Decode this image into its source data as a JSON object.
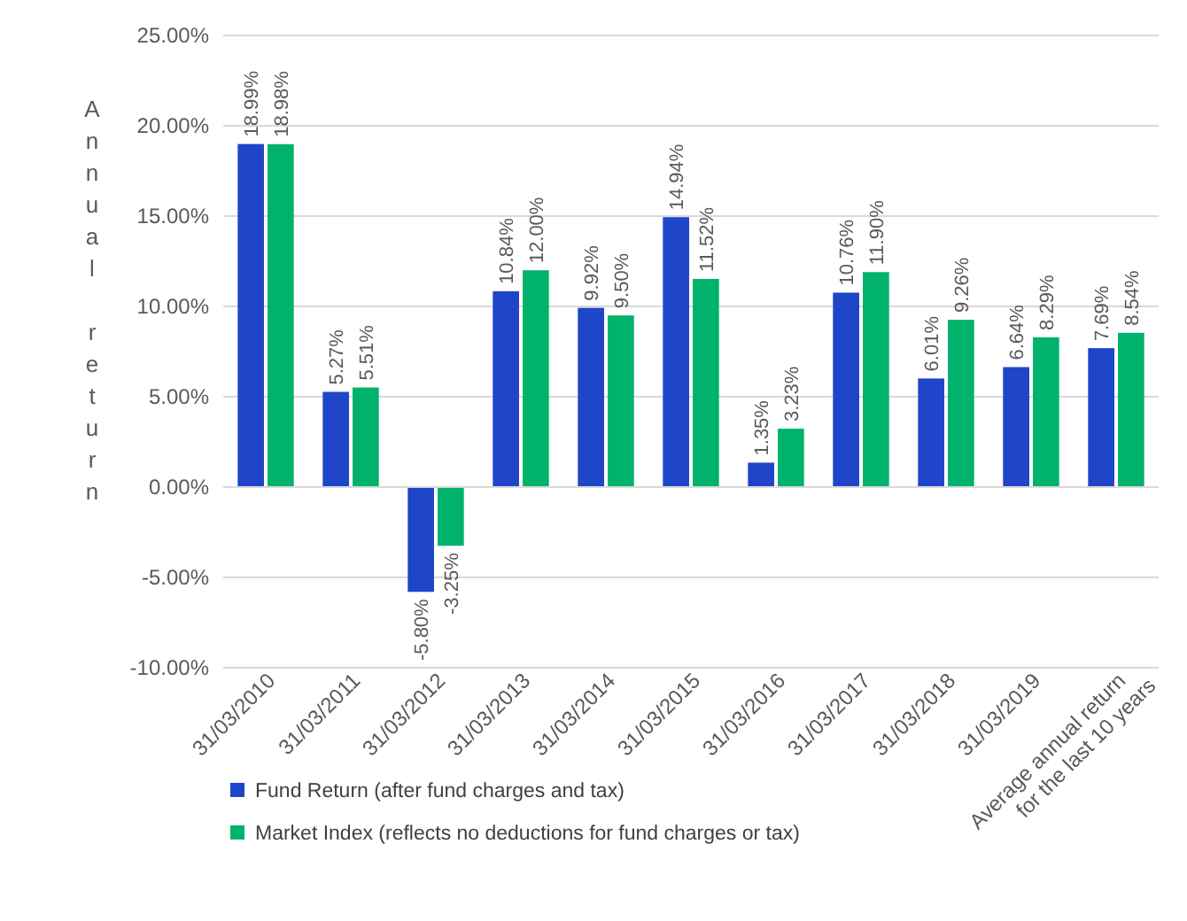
{
  "chart_data": {
    "type": "bar",
    "ylabel": "Annual return",
    "categories": [
      "31/03/2010",
      "31/03/2011",
      "31/03/2012",
      "31/03/2013",
      "31/03/2014",
      "31/03/2015",
      "31/03/2016",
      "31/03/2017",
      "31/03/2018",
      "31/03/2019",
      "Average annual  return\nfor the last 10 years"
    ],
    "series": [
      {
        "name": "Fund Return (after fund charges and tax)",
        "color": "#1f45c8",
        "values": [
          18.99,
          5.27,
          -5.8,
          10.84,
          9.92,
          14.94,
          1.35,
          10.76,
          6.01,
          6.64,
          7.69
        ],
        "value_labels": [
          "18.99%",
          "5.27%",
          "-5.80%",
          "10.84%",
          "9.92%",
          "14.94%",
          "1.35%",
          "10.76%",
          "6.01%",
          "6.64%",
          "7.69%"
        ]
      },
      {
        "name": "Market Index (reflects no deductions for fund charges or tax)",
        "color": "#00b26b",
        "values": [
          18.98,
          5.51,
          -3.25,
          12.0,
          9.5,
          11.52,
          3.23,
          11.9,
          9.26,
          8.29,
          8.54
        ],
        "value_labels": [
          "18.98%",
          "5.51%",
          "-3.25%",
          "12.00%",
          "9.50%",
          "11.52%",
          "3.23%",
          "11.90%",
          "9.26%",
          "8.29%",
          "8.54%"
        ]
      }
    ],
    "ylim": [
      -10,
      25
    ],
    "yticks": [
      {
        "value": -10,
        "label": "-10.00%"
      },
      {
        "value": -5,
        "label": "-5.00%"
      },
      {
        "value": 0,
        "label": "0.00%"
      },
      {
        "value": 5,
        "label": "5.00%"
      },
      {
        "value": 10,
        "label": "10.00%"
      },
      {
        "value": 15,
        "label": "15.00%"
      },
      {
        "value": 20,
        "label": "20.00%"
      },
      {
        "value": 25,
        "label": "25.00%"
      }
    ],
    "grid": "y",
    "legend": "bottom left"
  }
}
